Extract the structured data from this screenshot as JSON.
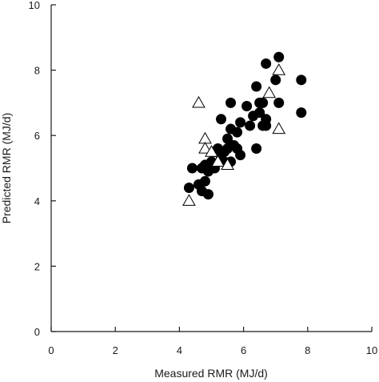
{
  "chart_data": {
    "type": "scatter",
    "xlabel": "Measured RMR (MJ/d)",
    "ylabel": "Predicted RMR (MJ/d)",
    "xlim": [
      0,
      10
    ],
    "ylim": [
      0,
      10
    ],
    "xticks": [
      0,
      2,
      4,
      6,
      8,
      10
    ],
    "yticks": [
      0,
      2,
      4,
      6,
      8,
      10
    ],
    "grid": false,
    "series": [
      {
        "marker": "filled-circle",
        "color": "#000000",
        "points": [
          [
            4.3,
            4.4
          ],
          [
            4.4,
            5.0
          ],
          [
            4.6,
            4.5
          ],
          [
            4.7,
            4.3
          ],
          [
            4.7,
            5.0
          ],
          [
            4.8,
            4.6
          ],
          [
            4.8,
            5.1
          ],
          [
            4.9,
            4.2
          ],
          [
            4.9,
            4.9
          ],
          [
            5.0,
            5.2
          ],
          [
            5.1,
            5.5
          ],
          [
            5.1,
            5.0
          ],
          [
            5.2,
            5.6
          ],
          [
            5.3,
            6.5
          ],
          [
            5.3,
            5.3
          ],
          [
            5.4,
            5.5
          ],
          [
            5.4,
            5.2
          ],
          [
            5.5,
            5.9
          ],
          [
            5.5,
            5.6
          ],
          [
            5.6,
            7.0
          ],
          [
            5.6,
            6.2
          ],
          [
            5.6,
            5.2
          ],
          [
            5.7,
            5.7
          ],
          [
            5.8,
            6.1
          ],
          [
            5.8,
            5.6
          ],
          [
            5.9,
            6.4
          ],
          [
            5.9,
            5.4
          ],
          [
            6.1,
            6.9
          ],
          [
            6.2,
            6.3
          ],
          [
            6.3,
            6.6
          ],
          [
            6.4,
            7.5
          ],
          [
            6.4,
            5.6
          ],
          [
            6.5,
            7.0
          ],
          [
            6.5,
            6.7
          ],
          [
            6.6,
            6.3
          ],
          [
            6.6,
            7.0
          ],
          [
            6.7,
            8.2
          ],
          [
            6.7,
            6.3
          ],
          [
            6.7,
            6.5
          ],
          [
            7.0,
            7.7
          ],
          [
            7.1,
            8.4
          ],
          [
            7.1,
            7.0
          ],
          [
            7.8,
            7.7
          ],
          [
            7.8,
            6.7
          ]
        ]
      },
      {
        "marker": "open-triangle",
        "color": "#000000",
        "points": [
          [
            4.3,
            4.0
          ],
          [
            4.6,
            7.0
          ],
          [
            4.8,
            5.9
          ],
          [
            4.8,
            5.6
          ],
          [
            5.0,
            5.5
          ],
          [
            5.2,
            5.2
          ],
          [
            5.5,
            5.1
          ],
          [
            6.8,
            7.3
          ],
          [
            7.1,
            6.2
          ],
          [
            7.1,
            8.0
          ]
        ]
      }
    ]
  }
}
